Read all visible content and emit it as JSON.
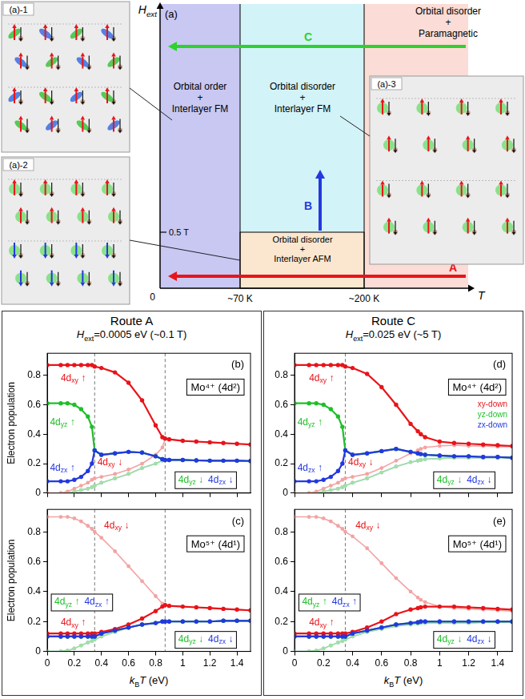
{
  "phase_diagram": {
    "panel_label": "(a)",
    "x_axis": "T",
    "y_axis": "Hext",
    "origin": "0",
    "temperatures": [
      "~70 K",
      "~200 K"
    ],
    "field": "0.5 T",
    "phases": [
      {
        "lines": [
          "Orbital order",
          "+",
          "Interlayer FM"
        ],
        "color": "#c8c8f3"
      },
      {
        "lines": [
          "Orbital disorder",
          "+",
          "Interlayer FM"
        ],
        "color": "#d2f3f8"
      },
      {
        "lines": [
          "Orbital disorder",
          "+",
          "Paramagnetic"
        ],
        "color": "#fbdcd6"
      },
      {
        "lines": [
          "Orbital disorder",
          "+",
          "Interlayer AFM"
        ],
        "color": "#fbe7cf"
      }
    ],
    "arrows": [
      {
        "label": "A",
        "color": "#e8141a"
      },
      {
        "label": "B",
        "color": "#2438e0"
      },
      {
        "label": "C",
        "color": "#2ed12e"
      }
    ],
    "insets": [
      "(a)-1",
      "(a)-2",
      "(a)-3"
    ]
  },
  "routes": [
    {
      "title": "Route A",
      "subtitle": "Hext=0.0005 eV (~0.1 T)"
    },
    {
      "title": "Route C",
      "subtitle": "Hext=0.025 eV (~5 T)"
    }
  ],
  "chart_data": [
    {
      "type": "line",
      "panel_label": "(b)",
      "annotations": [
        "Mo⁴⁺ (4d²)"
      ],
      "ylabel": "Electron population",
      "x": [
        0,
        0.1,
        0.15,
        0.2,
        0.25,
        0.3,
        0.33,
        0.35,
        0.4,
        0.5,
        0.6,
        0.7,
        0.8,
        0.85,
        0.87,
        0.9,
        1,
        1.1,
        1.2,
        1.3,
        1.4,
        1.5
      ],
      "xlim": [
        0,
        1.5
      ],
      "xticks": [
        0,
        0.2,
        0.4,
        0.6,
        0.8,
        1,
        1.2,
        1.4
      ],
      "ylim": [
        0,
        0.95
      ],
      "yticks": [
        0,
        0.2,
        0.4,
        0.6,
        0.8
      ],
      "vlines": [
        0.35,
        0.87
      ],
      "grid": false,
      "tick_labels": "y",
      "marker": "circle",
      "line_style": "solid",
      "series": [
        {
          "name": "4dxy ↑",
          "color": "#e8141a",
          "values": [
            0.87,
            0.87,
            0.87,
            0.87,
            0.87,
            0.87,
            0.87,
            0.86,
            0.85,
            0.82,
            0.75,
            0.63,
            0.46,
            0.38,
            0.37,
            0.365,
            0.355,
            0.35,
            0.345,
            0.34,
            0.335,
            0.33
          ]
        },
        {
          "name": "4dyz ↑",
          "color": "#1fbf2a",
          "values": [
            0.61,
            0.61,
            0.61,
            0.6,
            0.57,
            0.52,
            0.45,
            0.29,
            0.26,
            0.27,
            0.28,
            0.275,
            0.25,
            0.23,
            0.225,
            0.225,
            0.225,
            0.222,
            0.22,
            0.22,
            0.22,
            0.218
          ]
        },
        {
          "name": "4dzx ↑",
          "color": "#2438e0",
          "values": [
            0.08,
            0.08,
            0.08,
            0.09,
            0.11,
            0.15,
            0.2,
            0.29,
            0.26,
            0.27,
            0.28,
            0.275,
            0.25,
            0.23,
            0.225,
            0.225,
            0.225,
            0.222,
            0.22,
            0.22,
            0.22,
            0.218
          ]
        },
        {
          "name": "4dxy ↓",
          "color": "#f3a3a3",
          "values": [
            0,
            0,
            0.01,
            0.03,
            0.05,
            0.07,
            0.09,
            0.1,
            0.11,
            0.13,
            0.16,
            0.2,
            0.26,
            0.31,
            0.37,
            0.365,
            0.355,
            0.35,
            0.345,
            0.34,
            0.335,
            0.33
          ]
        },
        {
          "name": "4dyz ↓",
          "color": "#9fe29f",
          "values": [
            0,
            0,
            0,
            0.01,
            0.02,
            0.03,
            0.04,
            0.05,
            0.07,
            0.1,
            0.13,
            0.17,
            0.2,
            0.22,
            0.225,
            0.225,
            0.225,
            0.222,
            0.22,
            0.22,
            0.22,
            0.218
          ]
        },
        {
          "name": "4dzx ↓",
          "color": "#a3b2ef",
          "values": [
            0,
            0,
            0,
            0.01,
            0.02,
            0.03,
            0.04,
            0.05,
            0.07,
            0.1,
            0.13,
            0.17,
            0.2,
            0.22,
            0.225,
            0.225,
            0.225,
            0.222,
            0.22,
            0.22,
            0.22,
            0.218
          ]
        }
      ]
    },
    {
      "type": "line",
      "panel_label": "(c)",
      "annotations": [
        "Mo⁵⁺ (4d¹)"
      ],
      "ylabel": "Electron population",
      "xlabel": "kBT (eV)",
      "x": [
        0,
        0.1,
        0.15,
        0.2,
        0.25,
        0.3,
        0.33,
        0.35,
        0.4,
        0.5,
        0.6,
        0.7,
        0.8,
        0.85,
        0.87,
        0.9,
        1,
        1.1,
        1.2,
        1.3,
        1.4,
        1.5
      ],
      "xlim": [
        0,
        1.5
      ],
      "xticks": [
        0,
        0.2,
        0.4,
        0.6,
        0.8,
        1,
        1.2,
        1.4
      ],
      "ylim": [
        0,
        0.95
      ],
      "yticks": [
        0,
        0.2,
        0.4,
        0.6,
        0.8
      ],
      "vlines": [
        0.35,
        0.87
      ],
      "grid": false,
      "marker": "circle",
      "line_style": "solid",
      "series": [
        {
          "name": "4dxy ↑",
          "color": "#e8141a",
          "values": [
            0.12,
            0.12,
            0.12,
            0.12,
            0.12,
            0.12,
            0.12,
            0.12,
            0.13,
            0.15,
            0.18,
            0.22,
            0.27,
            0.3,
            0.31,
            0.305,
            0.3,
            0.295,
            0.29,
            0.285,
            0.28,
            0.275
          ]
        },
        {
          "name": "4dyz ↑",
          "color": "#1fbf2a",
          "values": [
            0.1,
            0.1,
            0.1,
            0.1,
            0.1,
            0.1,
            0.1,
            0.1,
            0.12,
            0.14,
            0.16,
            0.18,
            0.19,
            0.2,
            0.2,
            0.2,
            0.2,
            0.2,
            0.2,
            0.205,
            0.205,
            0.205
          ]
        },
        {
          "name": "4dzx ↑",
          "color": "#2438e0",
          "values": [
            0.1,
            0.1,
            0.1,
            0.1,
            0.1,
            0.1,
            0.1,
            0.1,
            0.12,
            0.14,
            0.16,
            0.18,
            0.19,
            0.2,
            0.2,
            0.2,
            0.2,
            0.2,
            0.2,
            0.205,
            0.205,
            0.205
          ]
        },
        {
          "name": "4dxy ↓",
          "color": "#f3a3a3",
          "values": [
            0.9,
            0.9,
            0.9,
            0.89,
            0.87,
            0.84,
            0.82,
            0.8,
            0.76,
            0.67,
            0.57,
            0.47,
            0.37,
            0.32,
            0.31,
            0.305,
            0.3,
            0.295,
            0.29,
            0.285,
            0.28,
            0.275
          ]
        },
        {
          "name": "4dyz ↓",
          "color": "#9fe29f",
          "values": [
            0,
            0,
            0.005,
            0.02,
            0.04,
            0.06,
            0.07,
            0.08,
            0.1,
            0.13,
            0.16,
            0.18,
            0.19,
            0.2,
            0.2,
            0.2,
            0.2,
            0.2,
            0.2,
            0.205,
            0.205,
            0.205
          ]
        },
        {
          "name": "4dzx ↓",
          "color": "#a3b2ef",
          "values": [
            0,
            0,
            0.005,
            0.02,
            0.04,
            0.06,
            0.07,
            0.08,
            0.1,
            0.13,
            0.16,
            0.18,
            0.19,
            0.2,
            0.2,
            0.2,
            0.2,
            0.2,
            0.2,
            0.205,
            0.205,
            0.205
          ]
        }
      ]
    },
    {
      "type": "line",
      "panel_label": "(d)",
      "annotations": [
        "Mo⁴⁺ (4d²)",
        "xy-down",
        "yz-down",
        "zx-down"
      ],
      "x": [
        0,
        0.1,
        0.15,
        0.2,
        0.25,
        0.3,
        0.33,
        0.35,
        0.4,
        0.5,
        0.6,
        0.7,
        0.8,
        0.85,
        0.87,
        0.9,
        1,
        1.1,
        1.2,
        1.3,
        1.4,
        1.5
      ],
      "xlim": [
        0,
        1.5
      ],
      "xticks": [
        0,
        0.2,
        0.4,
        0.6,
        0.8,
        1,
        1.2,
        1.4
      ],
      "ylim": [
        0,
        0.95
      ],
      "yticks": [
        0,
        0.2,
        0.4,
        0.6,
        0.8
      ],
      "vlines": [
        0.35
      ],
      "grid": false,
      "tick_labels": "y",
      "marker": "circle",
      "line_style": "solid",
      "series": [
        {
          "name": "4dxy ↑",
          "color": "#e8141a",
          "values": [
            0.87,
            0.87,
            0.87,
            0.87,
            0.87,
            0.87,
            0.87,
            0.86,
            0.85,
            0.81,
            0.72,
            0.6,
            0.47,
            0.42,
            0.4,
            0.38,
            0.35,
            0.34,
            0.335,
            0.33,
            0.325,
            0.32
          ]
        },
        {
          "name": "4dyz ↑",
          "color": "#1fbf2a",
          "values": [
            0.61,
            0.61,
            0.61,
            0.6,
            0.57,
            0.52,
            0.45,
            0.29,
            0.26,
            0.27,
            0.285,
            0.3,
            0.28,
            0.27,
            0.265,
            0.26,
            0.255,
            0.25,
            0.25,
            0.245,
            0.245,
            0.24
          ]
        },
        {
          "name": "4dzx ↑",
          "color": "#2438e0",
          "values": [
            0.08,
            0.08,
            0.08,
            0.09,
            0.11,
            0.15,
            0.2,
            0.29,
            0.26,
            0.27,
            0.285,
            0.3,
            0.28,
            0.27,
            0.265,
            0.26,
            0.255,
            0.25,
            0.25,
            0.245,
            0.245,
            0.24
          ]
        },
        {
          "name": "4dxy ↓",
          "color": "#f3a3a3",
          "values": [
            0,
            0,
            0.01,
            0.03,
            0.05,
            0.07,
            0.09,
            0.1,
            0.11,
            0.13,
            0.17,
            0.22,
            0.27,
            0.29,
            0.3,
            0.31,
            0.32,
            0.325,
            0.32,
            0.32,
            0.315,
            0.315
          ]
        },
        {
          "name": "4dyz ↓",
          "color": "#9fe29f",
          "values": [
            0,
            0,
            0,
            0.01,
            0.02,
            0.03,
            0.04,
            0.05,
            0.07,
            0.1,
            0.14,
            0.18,
            0.21,
            0.22,
            0.225,
            0.23,
            0.235,
            0.24,
            0.24,
            0.24,
            0.24,
            0.24
          ]
        },
        {
          "name": "4dzx ↓",
          "color": "#a3b2ef",
          "values": [
            0,
            0,
            0,
            0.01,
            0.02,
            0.03,
            0.04,
            0.05,
            0.07,
            0.1,
            0.14,
            0.18,
            0.21,
            0.22,
            0.225,
            0.23,
            0.235,
            0.24,
            0.24,
            0.24,
            0.24,
            0.24
          ]
        }
      ]
    },
    {
      "type": "line",
      "panel_label": "(e)",
      "annotations": [
        "Mo⁵⁺ (4d¹)"
      ],
      "xlabel": "kBT (eV)",
      "x": [
        0,
        0.1,
        0.15,
        0.2,
        0.25,
        0.3,
        0.33,
        0.35,
        0.4,
        0.5,
        0.6,
        0.7,
        0.8,
        0.85,
        0.87,
        0.9,
        1,
        1.1,
        1.2,
        1.3,
        1.4,
        1.5
      ],
      "xlim": [
        0,
        1.5
      ],
      "xticks": [
        0,
        0.2,
        0.4,
        0.6,
        0.8,
        1,
        1.2,
        1.4
      ],
      "ylim": [
        0,
        0.95
      ],
      "yticks": [
        0,
        0.2,
        0.4,
        0.6,
        0.8
      ],
      "vlines": [
        0.35
      ],
      "grid": false,
      "marker": "circle",
      "line_style": "solid",
      "series": [
        {
          "name": "4dxy ↑",
          "color": "#e8141a",
          "values": [
            0.12,
            0.12,
            0.12,
            0.12,
            0.12,
            0.12,
            0.12,
            0.12,
            0.13,
            0.16,
            0.2,
            0.25,
            0.28,
            0.29,
            0.295,
            0.3,
            0.3,
            0.3,
            0.295,
            0.29,
            0.285,
            0.28
          ]
        },
        {
          "name": "4dyz ↑",
          "color": "#1fbf2a",
          "values": [
            0.1,
            0.1,
            0.1,
            0.1,
            0.1,
            0.1,
            0.1,
            0.1,
            0.12,
            0.14,
            0.16,
            0.18,
            0.19,
            0.195,
            0.2,
            0.2,
            0.2,
            0.2,
            0.2,
            0.2,
            0.2,
            0.2
          ]
        },
        {
          "name": "4dzx ↑",
          "color": "#2438e0",
          "values": [
            0.1,
            0.1,
            0.1,
            0.1,
            0.1,
            0.1,
            0.1,
            0.1,
            0.12,
            0.14,
            0.16,
            0.18,
            0.19,
            0.195,
            0.2,
            0.2,
            0.2,
            0.2,
            0.2,
            0.2,
            0.2,
            0.2
          ]
        },
        {
          "name": "4dxy ↓",
          "color": "#f3a3a3",
          "values": [
            0.9,
            0.9,
            0.9,
            0.89,
            0.87,
            0.84,
            0.82,
            0.8,
            0.77,
            0.69,
            0.59,
            0.49,
            0.4,
            0.36,
            0.345,
            0.33,
            0.3,
            0.29,
            0.285,
            0.28,
            0.275,
            0.27
          ]
        },
        {
          "name": "4dyz ↓",
          "color": "#9fe29f",
          "values": [
            0,
            0,
            0.005,
            0.02,
            0.04,
            0.06,
            0.07,
            0.08,
            0.1,
            0.13,
            0.15,
            0.17,
            0.18,
            0.185,
            0.19,
            0.19,
            0.19,
            0.19,
            0.19,
            0.195,
            0.195,
            0.195
          ]
        },
        {
          "name": "4dzx ↓",
          "color": "#a3b2ef",
          "values": [
            0,
            0,
            0.005,
            0.02,
            0.04,
            0.06,
            0.07,
            0.08,
            0.1,
            0.13,
            0.15,
            0.17,
            0.18,
            0.185,
            0.19,
            0.19,
            0.19,
            0.19,
            0.19,
            0.195,
            0.195,
            0.195
          ]
        }
      ]
    }
  ]
}
